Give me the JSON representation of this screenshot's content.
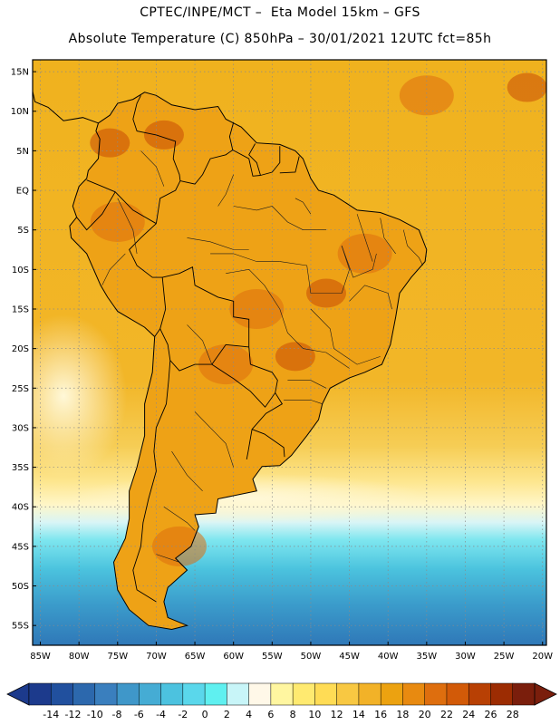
{
  "header": {
    "line1": "CPTEC/INPE/MCT –  Eta Model 15km – GFS",
    "line2": "Absolute Temperature (C) 850hPa – 30/01/2021 12UTC fct=85h"
  },
  "map": {
    "lon_range": [
      -86,
      -19.5
    ],
    "lat_range": [
      -57.5,
      16.5
    ],
    "lat_ticks": [
      {
        "value": 15,
        "label": "15N"
      },
      {
        "value": 10,
        "label": "10N"
      },
      {
        "value": 5,
        "label": "5N"
      },
      {
        "value": 0,
        "label": "EQ"
      },
      {
        "value": -5,
        "label": "5S"
      },
      {
        "value": -10,
        "label": "10S"
      },
      {
        "value": -15,
        "label": "15S"
      },
      {
        "value": -20,
        "label": "20S"
      },
      {
        "value": -25,
        "label": "25S"
      },
      {
        "value": -30,
        "label": "30S"
      },
      {
        "value": -35,
        "label": "35S"
      },
      {
        "value": -40,
        "label": "40S"
      },
      {
        "value": -45,
        "label": "45S"
      },
      {
        "value": -50,
        "label": "50S"
      },
      {
        "value": -55,
        "label": "55S"
      }
    ],
    "lon_ticks": [
      {
        "value": -85,
        "label": "85W"
      },
      {
        "value": -80,
        "label": "80W"
      },
      {
        "value": -75,
        "label": "75W"
      },
      {
        "value": -70,
        "label": "70W"
      },
      {
        "value": -65,
        "label": "65W"
      },
      {
        "value": -60,
        "label": "60W"
      },
      {
        "value": -55,
        "label": "55W"
      },
      {
        "value": -50,
        "label": "50W"
      },
      {
        "value": -45,
        "label": "45W"
      },
      {
        "value": -40,
        "label": "40W"
      },
      {
        "value": -35,
        "label": "35W"
      },
      {
        "value": -30,
        "label": "30W"
      },
      {
        "value": -25,
        "label": "25W"
      },
      {
        "value": -20,
        "label": "20W"
      }
    ],
    "coastline": [
      [
        -77.5,
        8.5
      ],
      [
        -76,
        9.5
      ],
      [
        -75,
        11
      ],
      [
        -73,
        11.5
      ],
      [
        -71.5,
        12.4
      ],
      [
        -70,
        12
      ],
      [
        -68,
        10.8
      ],
      [
        -65,
        10.2
      ],
      [
        -62,
        10.6
      ],
      [
        -61,
        9
      ],
      [
        -59,
        8
      ],
      [
        -57,
        6
      ],
      [
        -54,
        5.8
      ],
      [
        -52,
        5
      ],
      [
        -51,
        4
      ],
      [
        -50,
        1.5
      ],
      [
        -49,
        0
      ],
      [
        -47,
        -0.6
      ],
      [
        -44,
        -2.5
      ],
      [
        -41,
        -2.8
      ],
      [
        -38.5,
        -3.7
      ],
      [
        -36,
        -5
      ],
      [
        -35,
        -7.5
      ],
      [
        -35.2,
        -9
      ],
      [
        -37,
        -11
      ],
      [
        -38.5,
        -13
      ],
      [
        -39,
        -16
      ],
      [
        -39.7,
        -19.5
      ],
      [
        -40.8,
        -22
      ],
      [
        -43,
        -23
      ],
      [
        -45,
        -23.7
      ],
      [
        -47.5,
        -25
      ],
      [
        -48.5,
        -27
      ],
      [
        -49,
        -29
      ],
      [
        -50.5,
        -31
      ],
      [
        -52.5,
        -33.5
      ],
      [
        -54,
        -34.8
      ],
      [
        -56.3,
        -34.9
      ],
      [
        -57.5,
        -36.5
      ],
      [
        -57,
        -38
      ],
      [
        -62,
        -39
      ],
      [
        -62.3,
        -40.8
      ],
      [
        -65,
        -41
      ],
      [
        -64.5,
        -42.5
      ],
      [
        -65.5,
        -45
      ],
      [
        -67.5,
        -46.5
      ],
      [
        -66,
        -48
      ],
      [
        -68.5,
        -50.2
      ],
      [
        -69,
        -52
      ],
      [
        -68.5,
        -54
      ],
      [
        -66,
        -55
      ],
      [
        -68,
        -55.5
      ],
      [
        -71,
        -55
      ],
      [
        -73.5,
        -53
      ],
      [
        -75,
        -50.5
      ],
      [
        -75.5,
        -47
      ],
      [
        -74,
        -44
      ],
      [
        -73.5,
        -41.5
      ],
      [
        -73.5,
        -38
      ],
      [
        -72.5,
        -35
      ],
      [
        -71.5,
        -31
      ],
      [
        -71.5,
        -27
      ],
      [
        -70.5,
        -23
      ],
      [
        -70.2,
        -18.5
      ],
      [
        -71.5,
        -17.3
      ],
      [
        -75,
        -15.3
      ],
      [
        -76.3,
        -13.5
      ],
      [
        -77.2,
        -12
      ],
      [
        -79,
        -8
      ],
      [
        -81,
        -6
      ],
      [
        -81.2,
        -4.5
      ],
      [
        -80.3,
        -3.4
      ],
      [
        -80.8,
        -2
      ],
      [
        -80.5,
        -1
      ],
      [
        -80,
        0.5
      ],
      [
        -79,
        1.5
      ],
      [
        -78.8,
        2.5
      ],
      [
        -77.5,
        4
      ],
      [
        -77.3,
        6.5
      ],
      [
        -77.8,
        7.5
      ],
      [
        -77.5,
        8.5
      ]
    ],
    "central_america": [
      [
        -77.5,
        8.5
      ],
      [
        -79.5,
        9.2
      ],
      [
        -82,
        8.8
      ],
      [
        -84,
        10.5
      ],
      [
        -85.7,
        11.2
      ],
      [
        -86,
        12.5
      ]
    ],
    "borders": [
      [
        [
          -72,
          12
        ],
        [
          -72.5,
          11
        ],
        [
          -73,
          9
        ],
        [
          -72.5,
          7.5
        ],
        [
          -70,
          7
        ],
        [
          -67.5,
          6.2
        ],
        [
          -67.8,
          4
        ],
        [
          -67,
          2
        ],
        [
          -66.9,
          1.2
        ]
      ],
      [
        [
          -66.9,
          1.2
        ],
        [
          -65,
          0.8
        ],
        [
          -64,
          2
        ],
        [
          -63,
          4
        ],
        [
          -61,
          4.5
        ],
        [
          -60.1,
          5.1
        ],
        [
          -60.5,
          6.8
        ],
        [
          -60,
          8.6
        ]
      ],
      [
        [
          -60.1,
          5.1
        ],
        [
          -58,
          4
        ],
        [
          -57.5,
          1.8
        ],
        [
          -56.5,
          1.9
        ]
      ],
      [
        [
          -56.5,
          1.9
        ],
        [
          -57,
          3.5
        ],
        [
          -58,
          4.5
        ],
        [
          -57.2,
          5.9
        ]
      ],
      [
        [
          -56.5,
          1.9
        ],
        [
          -55,
          2.3
        ],
        [
          -54,
          3.5
        ],
        [
          -54,
          5.6
        ]
      ],
      [
        [
          -54,
          2.2
        ],
        [
          -52,
          2.3
        ],
        [
          -51.5,
          4.3
        ]
      ],
      [
        [
          -66.9,
          1.2
        ],
        [
          -67.5,
          0
        ],
        [
          -69.5,
          -1
        ],
        [
          -70,
          -4.2
        ]
      ],
      [
        [
          -79,
          1.3
        ],
        [
          -77,
          0.5
        ],
        [
          -75.3,
          -0.2
        ],
        [
          -73,
          -2.5
        ],
        [
          -70,
          -4.2
        ]
      ],
      [
        [
          -80.3,
          -3.4
        ],
        [
          -79,
          -5
        ],
        [
          -77,
          -3
        ],
        [
          -75.3,
          -0.2
        ]
      ],
      [
        [
          -70,
          -4.2
        ],
        [
          -72,
          -6
        ],
        [
          -73.5,
          -7.5
        ],
        [
          -72.5,
          -9.5
        ],
        [
          -70.5,
          -11
        ],
        [
          -69.2,
          -11
        ],
        [
          -69,
          -13
        ],
        [
          -68.8,
          -15
        ],
        [
          -69.5,
          -17.5
        ],
        [
          -70.2,
          -18.5
        ]
      ],
      [
        [
          -69.2,
          -11
        ],
        [
          -67,
          -10.5
        ],
        [
          -65.3,
          -9.7
        ],
        [
          -65,
          -12
        ],
        [
          -62,
          -13.5
        ],
        [
          -60,
          -14
        ],
        [
          -60,
          -16
        ],
        [
          -58,
          -16.3
        ],
        [
          -58,
          -19.8
        ],
        [
          -57.8,
          -22
        ]
      ],
      [
        [
          -69.5,
          -17.5
        ],
        [
          -68.5,
          -19.5
        ],
        [
          -68.2,
          -21.5
        ],
        [
          -67,
          -22.8
        ],
        [
          -65,
          -22
        ],
        [
          -62.8,
          -22
        ],
        [
          -61,
          -19.5
        ],
        [
          -58,
          -19.8
        ]
      ],
      [
        [
          -68.2,
          -21.5
        ],
        [
          -68.4,
          -24
        ],
        [
          -68.7,
          -27
        ],
        [
          -70,
          -30
        ],
        [
          -70.3,
          -33
        ],
        [
          -70,
          -35.5
        ],
        [
          -71,
          -39
        ],
        [
          -71.7,
          -42
        ],
        [
          -72,
          -45
        ],
        [
          -73,
          -48
        ],
        [
          -72.5,
          -50.5
        ],
        [
          -70,
          -52
        ]
      ],
      [
        [
          -62.8,
          -22
        ],
        [
          -60,
          -23.8
        ],
        [
          -57.8,
          -25.4
        ],
        [
          -55.9,
          -27.4
        ],
        [
          -54.6,
          -25.6
        ],
        [
          -54.3,
          -24
        ],
        [
          -55,
          -23
        ],
        [
          -57.8,
          -22
        ]
      ],
      [
        [
          -54.6,
          -25.6
        ],
        [
          -53.7,
          -27
        ],
        [
          -55.8,
          -28.2
        ],
        [
          -57.6,
          -30.2
        ],
        [
          -58.1,
          -33
        ],
        [
          -58.3,
          -34
        ]
      ],
      [
        [
          -57.6,
          -30.2
        ],
        [
          -56,
          -30.8
        ],
        [
          -53.5,
          -32.5
        ],
        [
          -53.4,
          -33.7
        ]
      ]
    ],
    "states": [
      [
        [
          -54,
          -9
        ],
        [
          -50.5,
          -9.5
        ],
        [
          -50,
          -13
        ],
        [
          -46,
          -13
        ],
        [
          -45,
          -10
        ],
        [
          -46,
          -7
        ]
      ],
      [
        [
          -46,
          -7
        ],
        [
          -44.5,
          -11
        ],
        [
          -42,
          -10
        ],
        [
          -41.5,
          -8
        ]
      ],
      [
        [
          -45,
          -14
        ],
        [
          -43,
          -12
        ],
        [
          -40,
          -13
        ],
        [
          -39.5,
          -15
        ]
      ],
      [
        [
          -50,
          -15
        ],
        [
          -47.5,
          -17.5
        ],
        [
          -47,
          -20
        ],
        [
          -44,
          -22
        ],
        [
          -41,
          -21
        ]
      ],
      [
        [
          -54,
          -15
        ],
        [
          -53,
          -18
        ],
        [
          -51,
          -20
        ],
        [
          -48,
          -20.5
        ],
        [
          -45,
          -22.5
        ]
      ],
      [
        [
          -54,
          -15
        ],
        [
          -56,
          -12
        ],
        [
          -58,
          -10
        ],
        [
          -61,
          -10.5
        ]
      ],
      [
        [
          -63,
          -8
        ],
        [
          -60,
          -8
        ],
        [
          -57,
          -9
        ],
        [
          -54,
          -9
        ]
      ],
      [
        [
          -53,
          -24
        ],
        [
          -50,
          -24
        ],
        [
          -48,
          -25
        ]
      ],
      [
        [
          -53.5,
          -26.5
        ],
        [
          -50,
          -26.5
        ],
        [
          -48.5,
          -27
        ]
      ],
      [
        [
          -60,
          -2
        ],
        [
          -57,
          -2.5
        ],
        [
          -55,
          -2
        ],
        [
          -53,
          -4
        ],
        [
          -51,
          -5
        ],
        [
          -48,
          -5
        ]
      ],
      [
        [
          -66,
          -6
        ],
        [
          -63,
          -6.5
        ],
        [
          -60,
          -7.5
        ],
        [
          -58,
          -7.5
        ]
      ],
      [
        [
          -60,
          2
        ],
        [
          -61,
          -0.5
        ],
        [
          -62,
          -2
        ]
      ],
      [
        [
          -52,
          -1
        ],
        [
          -51,
          -1.5
        ],
        [
          -50,
          -3
        ]
      ],
      [
        [
          -44,
          -3
        ],
        [
          -43,
          -6
        ],
        [
          -42,
          -9
        ]
      ],
      [
        [
          -41,
          -3.5
        ],
        [
          -40.5,
          -6
        ],
        [
          -39,
          -8
        ]
      ],
      [
        [
          -38,
          -5
        ],
        [
          -37.5,
          -7
        ],
        [
          -36,
          -8.5
        ],
        [
          -35.5,
          -9.5
        ]
      ],
      [
        [
          -72,
          5
        ],
        [
          -70,
          3
        ],
        [
          -69,
          0.5
        ]
      ],
      [
        [
          -75,
          -1
        ],
        [
          -73,
          -5
        ],
        [
          -72.5,
          -8
        ]
      ],
      [
        [
          -66,
          -17
        ],
        [
          -64,
          -19
        ],
        [
          -62.8,
          -22
        ]
      ],
      [
        [
          -65,
          -28
        ],
        [
          -63,
          -30
        ],
        [
          -61,
          -32
        ],
        [
          -60,
          -35
        ]
      ],
      [
        [
          -68,
          -33
        ],
        [
          -66,
          -36
        ],
        [
          -64,
          -38
        ]
      ],
      [
        [
          -69,
          -40
        ],
        [
          -66,
          -42
        ],
        [
          -65,
          -43
        ]
      ],
      [
        [
          -70,
          -46
        ],
        [
          -67,
          -47
        ]
      ],
      [
        [
          -74,
          -8
        ],
        [
          -76,
          -10
        ],
        [
          -77,
          -12
        ]
      ]
    ],
    "heat_cores": [
      {
        "lon": -52,
        "lat": -21,
        "level": 22
      },
      {
        "lon": -48,
        "lat": -13,
        "level": 22
      },
      {
        "lon": -76,
        "lat": 6,
        "level": 22
      },
      {
        "lon": -69,
        "lat": 7,
        "level": 22
      },
      {
        "lon": -57,
        "lat": -15,
        "level": 20
      },
      {
        "lon": -61,
        "lat": -22,
        "level": 20
      },
      {
        "lon": -75,
        "lat": -4,
        "level": 20
      },
      {
        "lon": -43,
        "lat": -8,
        "level": 20
      },
      {
        "lon": -67,
        "lat": -45,
        "level": 20
      },
      {
        "lon": -22,
        "lat": 13,
        "level": 22
      },
      {
        "lon": -35,
        "lat": 12,
        "level": 20
      }
    ]
  },
  "colorbar": {
    "title": "",
    "colors": [
      "#1c3a8c",
      "#21509e",
      "#2c68ad",
      "#3a7fbe",
      "#3f97c9",
      "#45acd4",
      "#4cc2df",
      "#5ad7eb",
      "#5ff0f0",
      "#c8f5f8",
      "#fff8e8",
      "#fff6a0",
      "#ffea70",
      "#ffdc55",
      "#f8c842",
      "#f2b228",
      "#eca210",
      "#e88a10",
      "#de6e0e",
      "#d25a08",
      "#b84004",
      "#9c2c02",
      "#7a1e0c"
    ],
    "labels": [
      "-14",
      "-12",
      "-10",
      "-8",
      "-6",
      "-4",
      "-2",
      "0",
      "2",
      "4",
      "6",
      "8",
      "10",
      "12",
      "14",
      "16",
      "18",
      "20",
      "22",
      "24",
      "26",
      "28"
    ]
  }
}
